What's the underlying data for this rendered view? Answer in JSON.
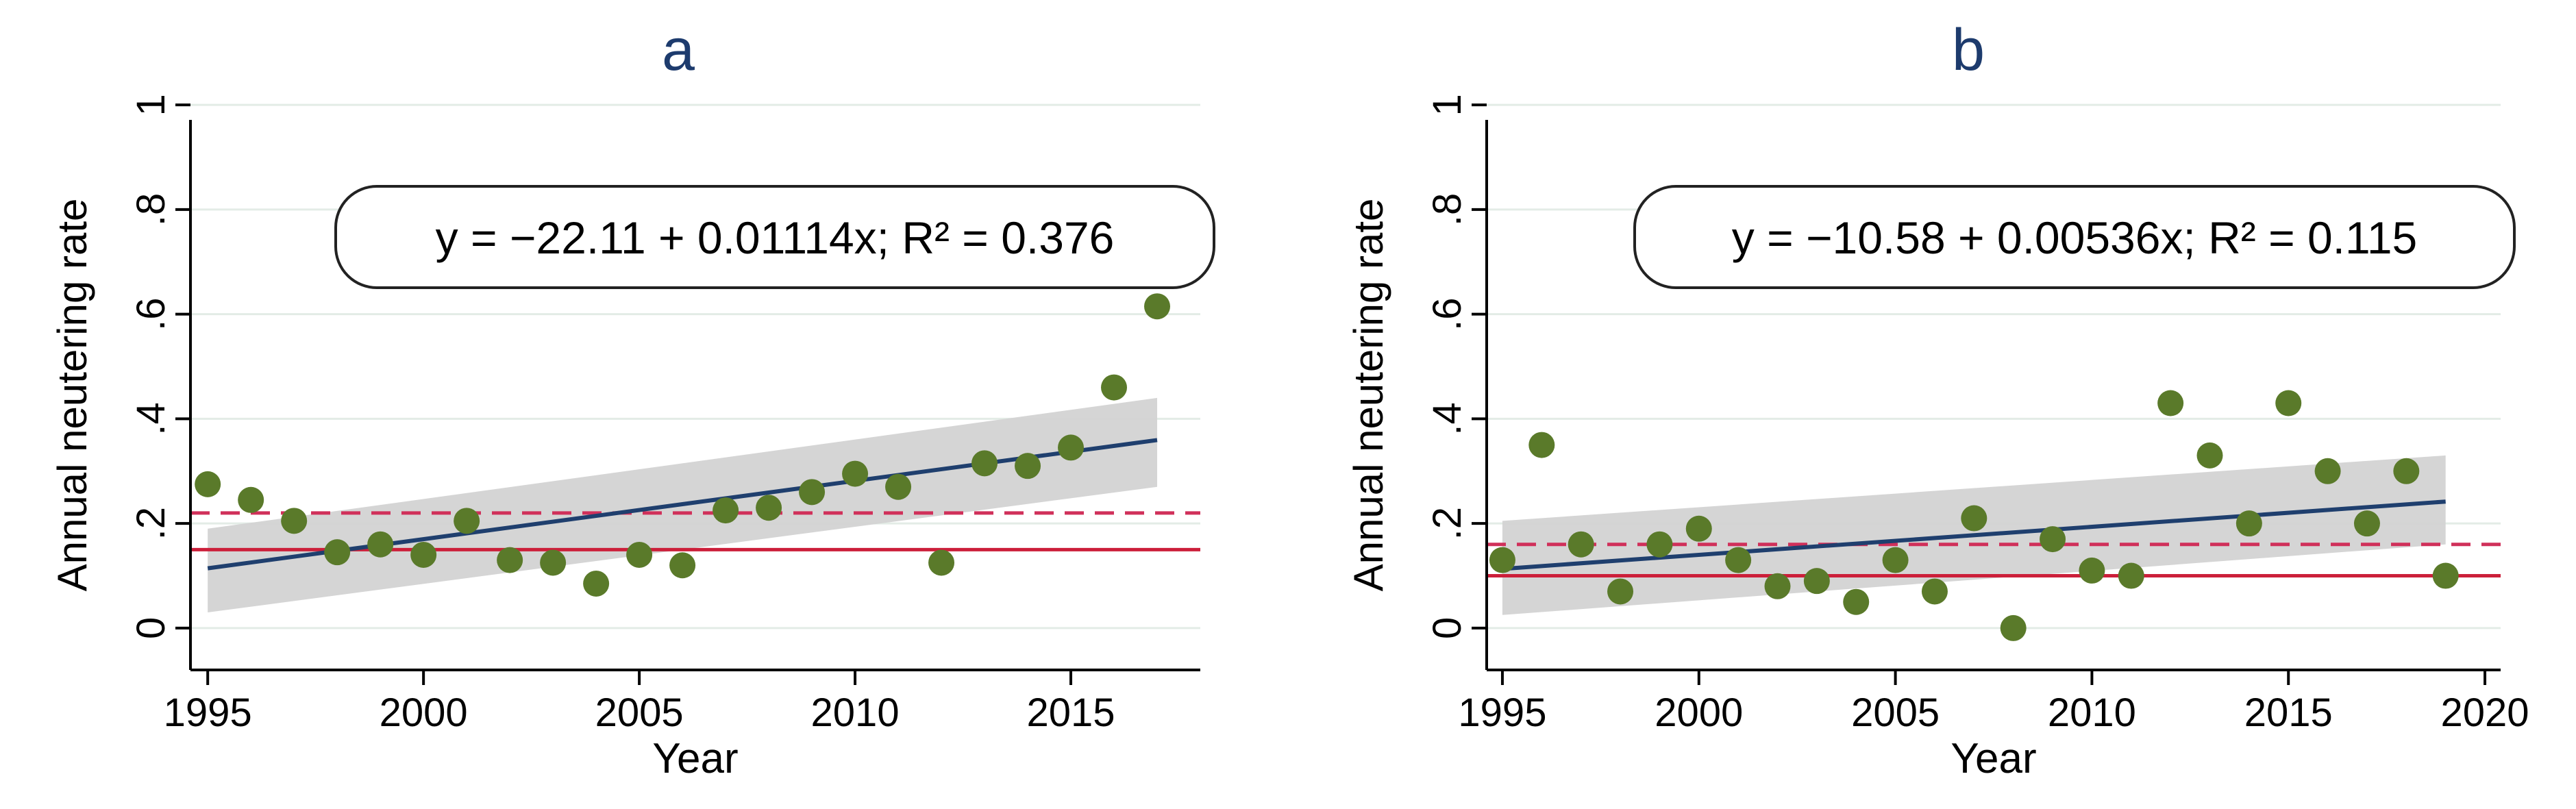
{
  "chart_data": [
    {
      "id": "a",
      "type": "scatter",
      "title": "a",
      "xlabel": "Year",
      "ylabel": "Annual neutering rate",
      "xlim": [
        1994.6,
        2018.0
      ],
      "ylim": [
        -0.08,
        1.05
      ],
      "xticks": [
        1995,
        2000,
        2005,
        2010,
        2015
      ],
      "xtick_labels": [
        "1995",
        "2000",
        "2005",
        "2010",
        "2015"
      ],
      "yticks": [
        0,
        0.2,
        0.4,
        0.6,
        0.8,
        1
      ],
      "ytick_labels": [
        "0",
        ".2",
        ".4",
        ".6",
        ".8",
        "1"
      ],
      "grid": true,
      "points": {
        "name": "Annual neutering rate",
        "color": "#5a7a2a",
        "x": [
          1995,
          1996,
          1997,
          1998,
          1999,
          2000,
          2001,
          2002,
          2003,
          2004,
          2005,
          2006,
          2007,
          2008,
          2009,
          2010,
          2011,
          2012,
          2013,
          2014,
          2015,
          2016,
          2017
        ],
        "y": [
          0.275,
          0.245,
          0.205,
          0.145,
          0.16,
          0.14,
          0.205,
          0.13,
          0.125,
          0.085,
          0.14,
          0.12,
          0.225,
          0.23,
          0.26,
          0.295,
          0.27,
          0.125,
          0.315,
          0.31,
          0.345,
          0.46,
          0.615
        ]
      },
      "fit": {
        "equation": "y = −22.11 + 0.01114x; R² = 0.376",
        "intercept": -22.11,
        "slope": 0.01114,
        "r2": 0.376,
        "x_range": [
          1995,
          2017
        ],
        "ci_lower": [
          0.03,
          0.27
        ],
        "ci_upper": [
          0.19,
          0.44
        ],
        "line_color": "#1f3f6e",
        "ci_color": "#d3d3d3"
      },
      "reference_lines": [
        {
          "name": "dashed reference",
          "y": 0.22,
          "style": "dashed",
          "color": "#d0305a"
        },
        {
          "name": "solid reference",
          "y": 0.15,
          "style": "solid",
          "color": "#cc1f3a"
        }
      ]
    },
    {
      "id": "b",
      "type": "scatter",
      "title": "b",
      "xlabel": "Year",
      "ylabel": "Annual neutering rate",
      "xlim": [
        1994.6,
        2020.4
      ],
      "ylim": [
        -0.08,
        1.05
      ],
      "xticks": [
        1995,
        2000,
        2005,
        2010,
        2015,
        2020
      ],
      "xtick_labels": [
        "1995",
        "2000",
        "2005",
        "2010",
        "2015",
        "2020"
      ],
      "yticks": [
        0,
        0.2,
        0.4,
        0.6,
        0.8,
        1
      ],
      "ytick_labels": [
        "0",
        ".2",
        ".4",
        ".6",
        ".8",
        "1"
      ],
      "grid": true,
      "points": {
        "name": "Annual neutering rate",
        "color": "#5a7a2a",
        "x": [
          1995,
          1996,
          1997,
          1998,
          1999,
          2000,
          2001,
          2002,
          2003,
          2004,
          2005,
          2006,
          2007,
          2008,
          2009,
          2010,
          2011,
          2012,
          2013,
          2014,
          2015,
          2016,
          2017,
          2018,
          2019
        ],
        "y": [
          0.13,
          0.35,
          0.16,
          0.07,
          0.16,
          0.19,
          0.13,
          0.08,
          0.09,
          0.05,
          0.13,
          0.07,
          0.21,
          0.0,
          0.17,
          0.11,
          0.1,
          0.43,
          0.33,
          0.2,
          0.43,
          0.3,
          0.2,
          0.3,
          0.1
        ]
      },
      "fit": {
        "equation": "y = −10.58 + 0.00536x; R² = 0.115",
        "intercept": -10.58,
        "slope": 0.00536,
        "r2": 0.115,
        "x_range": [
          1995,
          2019
        ],
        "ci_lower": [
          0.025,
          0.16
        ],
        "ci_upper": [
          0.205,
          0.33
        ],
        "line_color": "#1f3f6e",
        "ci_color": "#d3d3d3"
      },
      "reference_lines": [
        {
          "name": "dashed reference",
          "y": 0.16,
          "style": "dashed",
          "color": "#d0305a"
        },
        {
          "name": "solid reference",
          "y": 0.1,
          "style": "solid",
          "color": "#cc1f3a"
        }
      ]
    }
  ]
}
